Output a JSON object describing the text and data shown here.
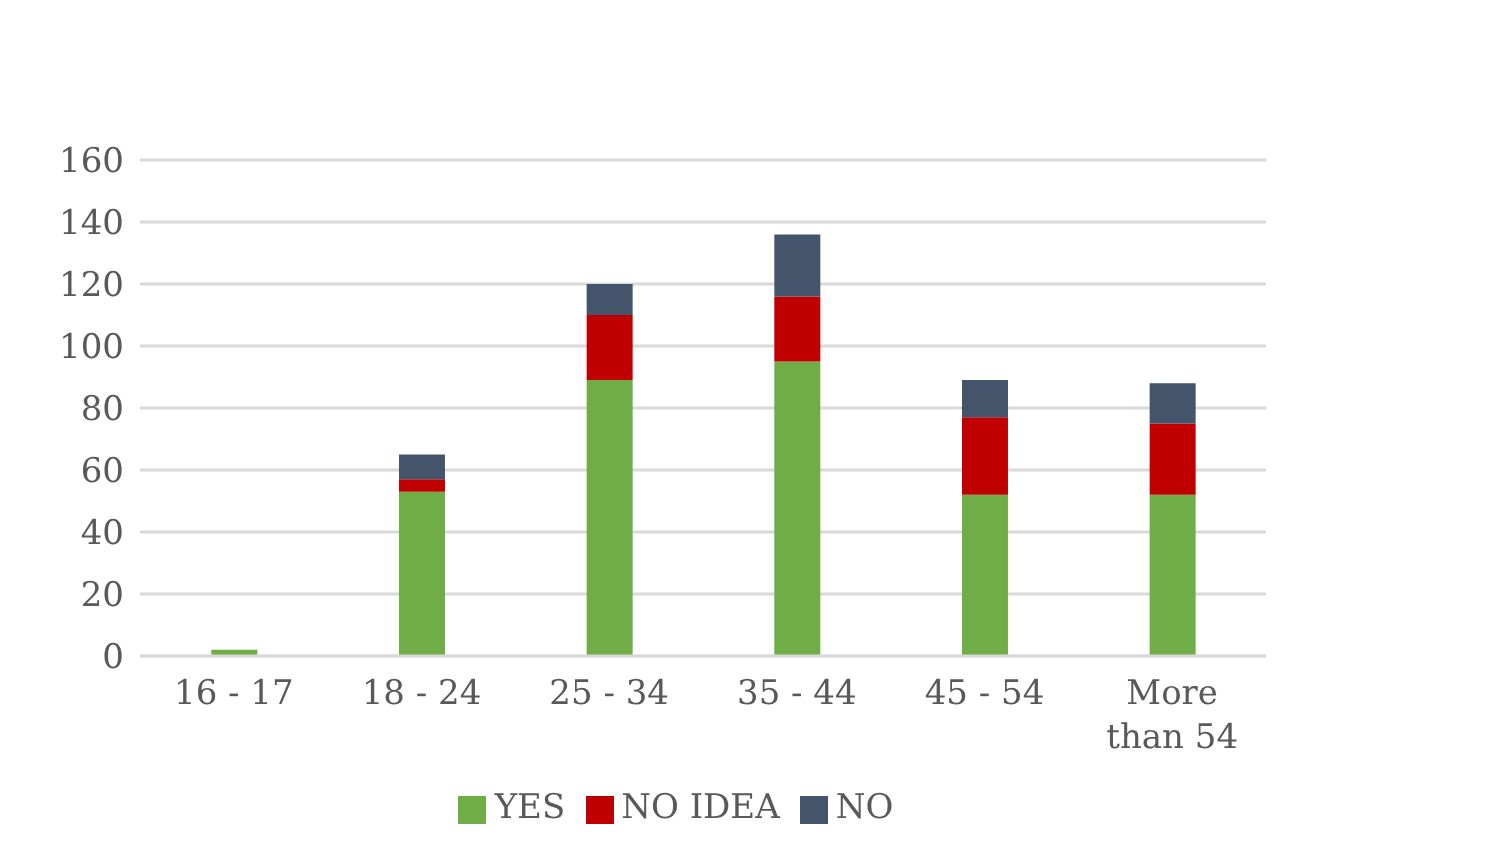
{
  "chart_data": {
    "type": "bar",
    "stacked": true,
    "categories": [
      "16 - 17",
      "18 - 24",
      "25 - 34",
      "35 - 44",
      "45 - 54",
      "More than 54"
    ],
    "series": [
      {
        "name": "YES",
        "color": "#70ad47",
        "values": [
          2,
          53,
          89,
          95,
          52,
          52
        ]
      },
      {
        "name": "NO IDEA",
        "color": "#c00000",
        "values": [
          0,
          4,
          21,
          21,
          25,
          23
        ]
      },
      {
        "name": "NO",
        "color": "#44546a",
        "values": [
          0,
          8,
          10,
          20,
          12,
          13
        ]
      }
    ],
    "ylim": [
      0,
      160
    ],
    "yticks": [
      0,
      20,
      40,
      60,
      80,
      100,
      120,
      140,
      160
    ],
    "grid": "y",
    "legend": "bottom"
  }
}
